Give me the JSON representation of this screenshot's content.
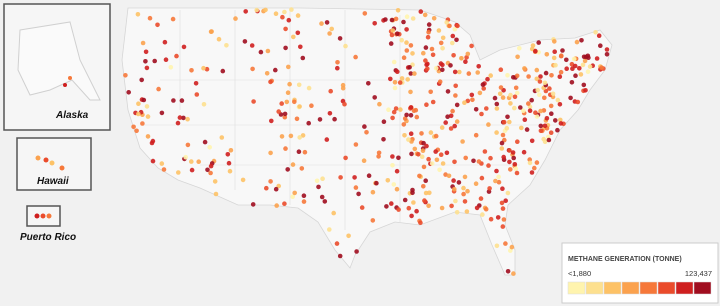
{
  "insets": [
    {
      "label": "Alaska"
    },
    {
      "label": "Hawaii"
    },
    {
      "label": "Puerto Rico"
    }
  ],
  "legend": {
    "title": "METHANE GENERATION (TONNE)",
    "min_label": "<1,880",
    "max_label": "123,437",
    "colors": [
      "#fff4ae",
      "#fde08f",
      "#fdc266",
      "#fba24e",
      "#f6783a",
      "#ea4b2b",
      "#cf1f1f",
      "#a00d1f"
    ]
  }
}
